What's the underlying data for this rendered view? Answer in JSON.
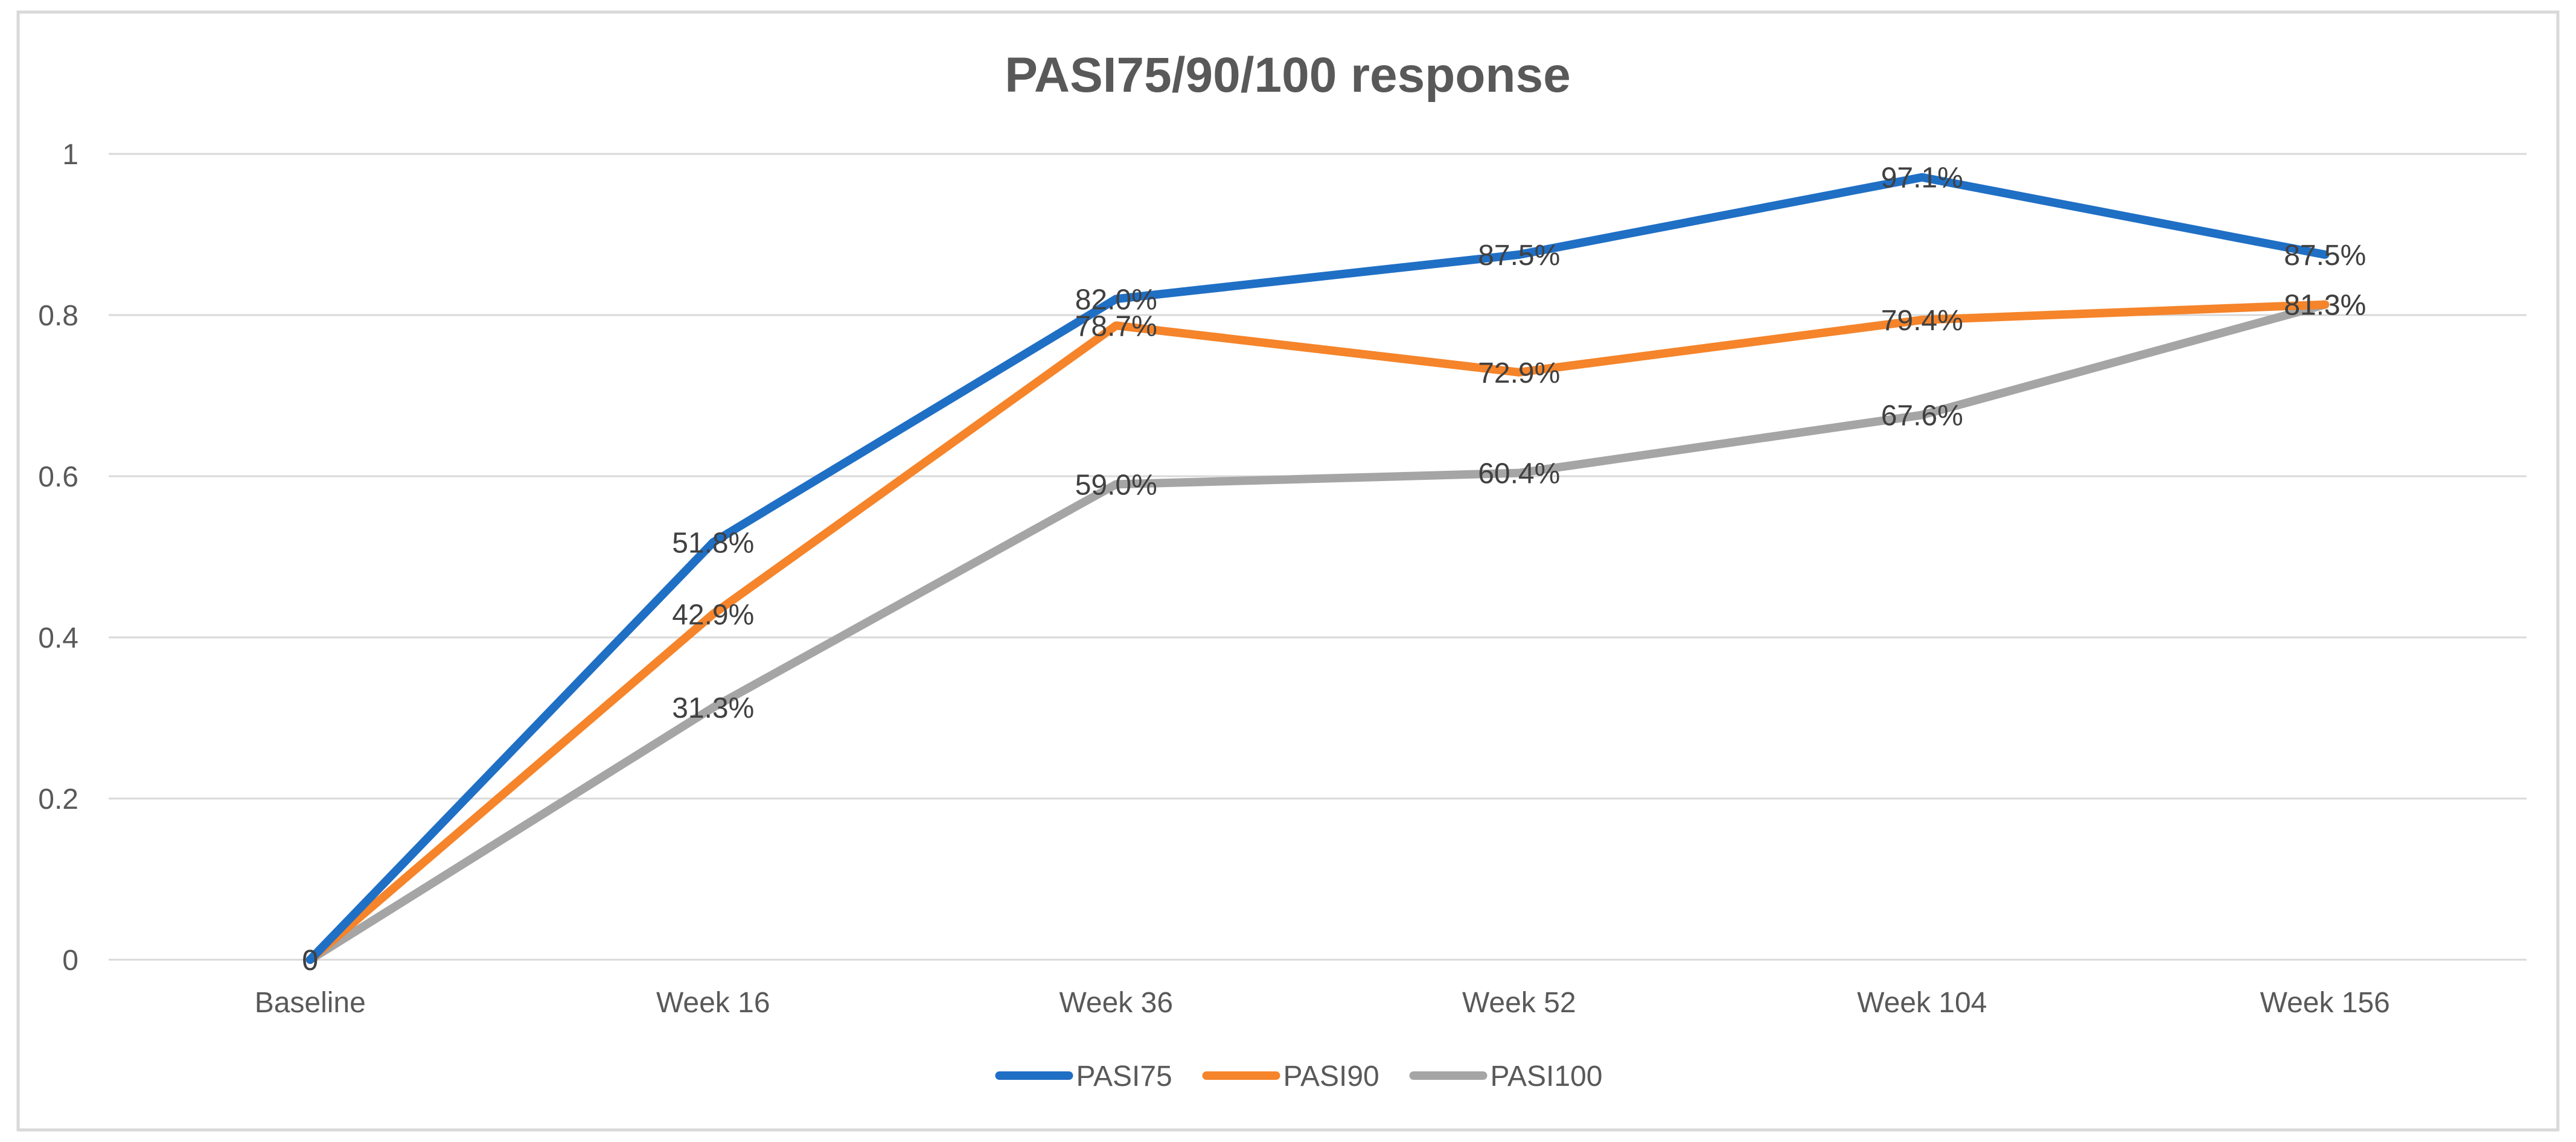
{
  "chart_data": {
    "type": "line",
    "title": "PASI75/90/100 response",
    "xlabel": "",
    "ylabel": "",
    "categories": [
      "Baseline",
      "Week 16",
      "Week 36",
      "Week 52",
      "Week 104",
      "Week 156"
    ],
    "ylim": [
      0,
      1
    ],
    "yticks": [
      0,
      0.2,
      0.4,
      0.6,
      0.8,
      1
    ],
    "ytick_labels": [
      "0",
      "0.2",
      "0.4",
      "0.6",
      "0.8",
      "1"
    ],
    "grid": true,
    "legend_position": "bottom",
    "series": [
      {
        "name": "PASI75",
        "color": "#1F6FC5",
        "values": [
          0,
          0.518,
          0.82,
          0.875,
          0.971,
          0.875
        ],
        "labels": [
          "0",
          "51.8%",
          "82.0%",
          "87.5%",
          "97.1%",
          "87.5%"
        ]
      },
      {
        "name": "PASI90",
        "color": "#F5842A",
        "values": [
          0,
          0.429,
          0.787,
          0.729,
          0.794,
          0.813
        ],
        "labels": [
          "0",
          "42.9%",
          "78.7%",
          "72.9%",
          "79.4%",
          "81.3%"
        ]
      },
      {
        "name": "PASI100",
        "color": "#A5A5A5",
        "values": [
          0,
          0.313,
          0.59,
          0.604,
          0.676,
          0.813
        ],
        "labels": [
          "0",
          "31.3%",
          "59.0%",
          "60.4%",
          "67.6%",
          "81.3%"
        ]
      }
    ]
  },
  "colors": {
    "gridline": "#D9D9D9",
    "frame_border": "#D9D9D9",
    "text": "#595959"
  }
}
